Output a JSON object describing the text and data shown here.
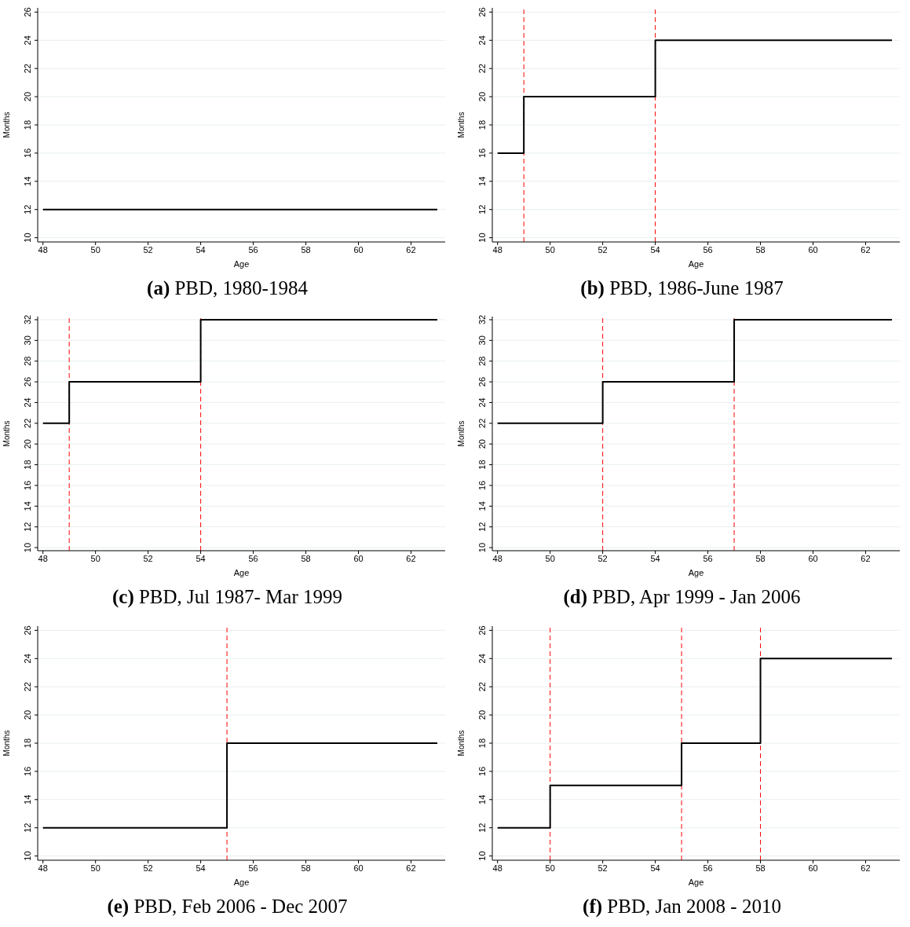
{
  "chart_data": [
    {
      "type": "step",
      "title": "(a) PBD, 1980-1984",
      "xlabel": "Age",
      "ylabel": "Months",
      "x": [
        48,
        63
      ],
      "values": [
        12,
        12
      ],
      "color": "#000000",
      "xlim": [
        47.8,
        63.3
      ],
      "xticks": [
        48,
        50,
        52,
        54,
        56,
        58,
        60,
        62
      ],
      "ylim": [
        9.7,
        26.3
      ],
      "yticks": [
        10,
        12,
        14,
        16,
        18,
        20,
        22,
        24,
        26
      ],
      "grid": "y"
    },
    {
      "type": "step",
      "title": "(b) PBD, 1986-June 1987",
      "xlabel": "Age",
      "ylabel": "Months",
      "x": [
        48,
        49,
        54,
        63
      ],
      "values": [
        16,
        20,
        24,
        24
      ],
      "color": "#000000",
      "xlim": [
        47.8,
        63.3
      ],
      "xticks": [
        48,
        50,
        52,
        54,
        56,
        58,
        60,
        62
      ],
      "ylim": [
        9.7,
        26.3
      ],
      "yticks": [
        10,
        12,
        14,
        16,
        18,
        20,
        22,
        24,
        26
      ],
      "grid": "y",
      "ref_lines": [
        {
          "axis": "x",
          "value": 49,
          "color": "#ff0000",
          "line_style": "dashed"
        },
        {
          "axis": "x",
          "value": 54,
          "color": "#ff0000",
          "line_style": "dashed"
        }
      ]
    },
    {
      "type": "step",
      "title": "(c) PBD, Jul 1987- Mar 1999",
      "xlabel": "Age",
      "ylabel": "Months",
      "x": [
        48,
        49,
        54,
        63
      ],
      "values": [
        22,
        26,
        32,
        32
      ],
      "color": "#000000",
      "xlim": [
        47.8,
        63.3
      ],
      "xticks": [
        48,
        50,
        52,
        54,
        56,
        58,
        60,
        62
      ],
      "ylim": [
        9.7,
        32.3
      ],
      "yticks": [
        10,
        12,
        14,
        16,
        18,
        20,
        22,
        24,
        26,
        28,
        30,
        32
      ],
      "grid": "y",
      "ref_lines": [
        {
          "axis": "x",
          "value": 49,
          "color": "#ff0000",
          "line_style": "dashed"
        },
        {
          "axis": "x",
          "value": 54,
          "color": "#ff0000",
          "line_style": "dashed"
        }
      ]
    },
    {
      "type": "step",
      "title": "(d) PBD, Apr 1999 - Jan 2006",
      "xlabel": "Age",
      "ylabel": "Months",
      "x": [
        48,
        52,
        57,
        63
      ],
      "values": [
        22,
        26,
        32,
        32
      ],
      "color": "#000000",
      "xlim": [
        47.8,
        63.3
      ],
      "xticks": [
        48,
        50,
        52,
        54,
        56,
        58,
        60,
        62
      ],
      "ylim": [
        9.7,
        32.3
      ],
      "yticks": [
        10,
        12,
        14,
        16,
        18,
        20,
        22,
        24,
        26,
        28,
        30,
        32
      ],
      "grid": "y",
      "ref_lines": [
        {
          "axis": "x",
          "value": 52,
          "color": "#ff0000",
          "line_style": "dashed"
        },
        {
          "axis": "x",
          "value": 57,
          "color": "#ff0000",
          "line_style": "dashed"
        }
      ]
    },
    {
      "type": "step",
      "title": "(e) PBD, Feb 2006 - Dec 2007",
      "xlabel": "Age",
      "ylabel": "Months",
      "x": [
        48,
        55,
        63
      ],
      "values": [
        12,
        18,
        18
      ],
      "color": "#000000",
      "xlim": [
        47.8,
        63.3
      ],
      "xticks": [
        48,
        50,
        52,
        54,
        56,
        58,
        60,
        62
      ],
      "ylim": [
        9.7,
        26.3
      ],
      "yticks": [
        10,
        12,
        14,
        16,
        18,
        20,
        22,
        24,
        26
      ],
      "grid": "y",
      "ref_lines": [
        {
          "axis": "x",
          "value": 55,
          "color": "#ff0000",
          "line_style": "dashed"
        }
      ]
    },
    {
      "type": "step",
      "title": "(f) PBD, Jan 2008 - 2010",
      "xlabel": "Age",
      "ylabel": "Months",
      "x": [
        48,
        50,
        55,
        58,
        63
      ],
      "values": [
        12,
        15,
        18,
        24,
        24
      ],
      "color": "#000000",
      "xlim": [
        47.8,
        63.3
      ],
      "xticks": [
        48,
        50,
        52,
        54,
        56,
        58,
        60,
        62
      ],
      "ylim": [
        9.7,
        26.3
      ],
      "yticks": [
        10,
        12,
        14,
        16,
        18,
        20,
        22,
        24,
        26
      ],
      "grid": "y",
      "ref_lines": [
        {
          "axis": "x",
          "value": 50,
          "color": "#ff0000",
          "line_style": "dashed"
        },
        {
          "axis": "x",
          "value": 55,
          "color": "#ff0000",
          "line_style": "dashed"
        },
        {
          "axis": "x",
          "value": 58,
          "color": "#ff0000",
          "line_style": "dashed"
        }
      ]
    }
  ]
}
